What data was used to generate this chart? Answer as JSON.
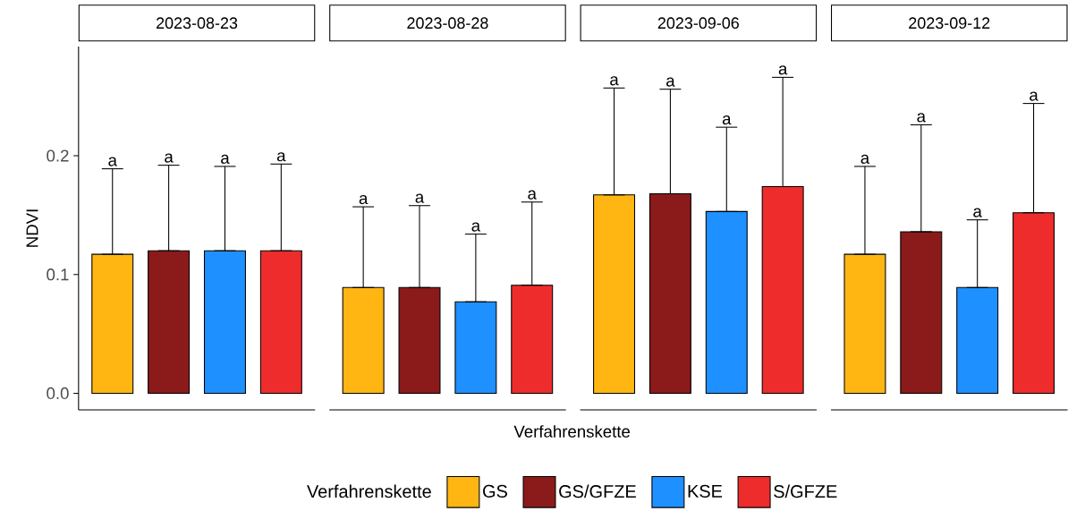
{
  "chart_data": {
    "type": "bar",
    "xlabel": "Verfahrenskette",
    "ylabel": "NDVI",
    "legend": "bottom",
    "legend_title": "Verfahrenskette",
    "categories": [
      "2023-08-23",
      "2023-08-28",
      "2023-09-06",
      "2023-09-12"
    ],
    "series": [
      {
        "name": "GS",
        "color": "#FFB612",
        "values": [
          0.117,
          0.089,
          0.167,
          0.117
        ],
        "errors": [
          [
            0.117,
            0.189
          ],
          [
            0.089,
            0.157
          ],
          [
            0.167,
            0.257
          ],
          [
            0.117,
            0.191
          ]
        ]
      },
      {
        "name": "GS/GFZE",
        "color": "#8B1A1A",
        "values": [
          0.12,
          0.089,
          0.168,
          0.136
        ],
        "errors": [
          [
            0.12,
            0.192
          ],
          [
            0.089,
            0.158
          ],
          [
            0.168,
            0.256
          ],
          [
            0.136,
            0.226
          ]
        ]
      },
      {
        "name": "KSE",
        "color": "#1E90FF",
        "values": [
          0.12,
          0.077,
          0.153,
          0.089
        ],
        "errors": [
          [
            0.12,
            0.191
          ],
          [
            0.077,
            0.134
          ],
          [
            0.153,
            0.224
          ],
          [
            0.089,
            0.146
          ]
        ]
      },
      {
        "name": "S/GFZE",
        "color": "#EE2C2C",
        "values": [
          0.12,
          0.091,
          0.174,
          0.152
        ],
        "errors": [
          [
            0.12,
            0.193
          ],
          [
            0.091,
            0.161
          ],
          [
            0.174,
            0.266
          ],
          [
            0.152,
            0.244
          ]
        ]
      }
    ],
    "ylim": [
      -0.014,
      0.292
    ],
    "yticks": [
      {
        "value": 0,
        "label": "0.0"
      },
      0.1,
      0.2
    ],
    "annotations": [
      "a",
      "a",
      "a",
      "a",
      "a",
      "a",
      "a",
      "a",
      "a",
      "a",
      "a",
      "a",
      "a",
      "a",
      "a",
      "a"
    ]
  }
}
